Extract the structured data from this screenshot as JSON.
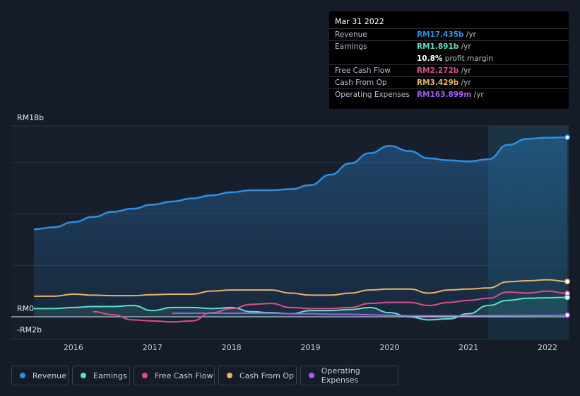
{
  "chart_data": {
    "type": "area",
    "yticks": [
      {
        "label": "RM18b",
        "value": 18
      },
      {
        "label": "RM0",
        "value": 0
      },
      {
        "label": "-RM2b",
        "value": -2
      }
    ],
    "ylim": [
      -2,
      18
    ],
    "xlim": [
      2015.5,
      2022.25
    ],
    "xticks": [
      "2016",
      "2017",
      "2018",
      "2019",
      "2020",
      "2021",
      "2022"
    ],
    "highlight_start": 2021.25,
    "series": [
      {
        "name": "Revenue",
        "color": "#2e8fe0",
        "fill": true,
        "x": [
          2015.5,
          2015.75,
          2016.0,
          2016.25,
          2016.5,
          2016.75,
          2017.0,
          2017.25,
          2017.5,
          2017.75,
          2018.0,
          2018.25,
          2018.5,
          2018.75,
          2019.0,
          2019.25,
          2019.5,
          2019.75,
          2020.0,
          2020.25,
          2020.5,
          2020.75,
          2021.0,
          2021.25,
          2021.5,
          2021.75,
          2022.0,
          2022.25
        ],
        "values": [
          8.5,
          8.7,
          9.2,
          9.7,
          10.2,
          10.5,
          10.9,
          11.2,
          11.5,
          11.8,
          12.1,
          12.3,
          12.3,
          12.4,
          12.8,
          13.8,
          14.9,
          15.9,
          16.6,
          16.1,
          15.4,
          15.2,
          15.1,
          15.3,
          16.7,
          17.3,
          17.4,
          17.435
        ]
      },
      {
        "name": "Earnings",
        "color": "#5ddfc9",
        "fill": true,
        "x": [
          2015.5,
          2015.75,
          2016.0,
          2016.25,
          2016.5,
          2016.75,
          2017.0,
          2017.25,
          2017.5,
          2017.75,
          2018.0,
          2018.25,
          2018.5,
          2018.75,
          2019.0,
          2019.25,
          2019.5,
          2019.75,
          2020.0,
          2020.25,
          2020.5,
          2020.75,
          2021.0,
          2021.25,
          2021.5,
          2021.75,
          2022.0,
          2022.25
        ],
        "values": [
          0.8,
          0.8,
          0.9,
          1.0,
          1.0,
          1.1,
          0.6,
          0.9,
          0.9,
          0.8,
          0.9,
          0.5,
          0.4,
          0.3,
          0.6,
          0.6,
          0.7,
          0.9,
          0.4,
          0.0,
          -0.3,
          -0.2,
          0.3,
          1.1,
          1.6,
          1.8,
          1.85,
          1.891
        ]
      },
      {
        "name": "Free Cash Flow",
        "color": "#d84f8b",
        "fill": false,
        "x": [
          2016.25,
          2016.5,
          2016.75,
          2017.0,
          2017.25,
          2017.5,
          2017.75,
          2018.0,
          2018.25,
          2018.5,
          2018.75,
          2019.0,
          2019.25,
          2019.5,
          2019.75,
          2020.0,
          2020.25,
          2020.5,
          2020.75,
          2021.0,
          2021.25,
          2021.5,
          2021.75,
          2022.0,
          2022.25
        ],
        "values": [
          0.5,
          0.2,
          -0.3,
          -0.4,
          -0.5,
          -0.4,
          0.4,
          0.8,
          1.2,
          1.3,
          0.9,
          0.8,
          0.8,
          0.9,
          1.3,
          1.4,
          1.4,
          1.1,
          1.4,
          1.6,
          1.8,
          2.4,
          2.3,
          2.5,
          2.272
        ]
      },
      {
        "name": "Cash From Op",
        "color": "#e8b26a",
        "fill": false,
        "x": [
          2015.5,
          2015.75,
          2016.0,
          2016.25,
          2016.5,
          2016.75,
          2017.0,
          2017.25,
          2017.5,
          2017.75,
          2018.0,
          2018.25,
          2018.5,
          2018.75,
          2019.0,
          2019.25,
          2019.5,
          2019.75,
          2020.0,
          2020.25,
          2020.5,
          2020.75,
          2021.0,
          2021.25,
          2021.5,
          2021.75,
          2022.0,
          2022.25
        ],
        "values": [
          2.0,
          2.0,
          2.2,
          2.1,
          2.05,
          2.05,
          2.15,
          2.2,
          2.2,
          2.5,
          2.6,
          2.6,
          2.6,
          2.3,
          2.1,
          2.1,
          2.3,
          2.6,
          2.7,
          2.7,
          2.3,
          2.6,
          2.7,
          2.8,
          3.4,
          3.5,
          3.6,
          3.429
        ]
      },
      {
        "name": "Operating Expenses",
        "color": "#a35cf0",
        "fill": false,
        "x": [
          2017.25,
          2017.5,
          2017.75,
          2018.0,
          2018.25,
          2018.5,
          2018.75,
          2019.0,
          2019.25,
          2019.5,
          2019.75,
          2020.0,
          2020.25,
          2020.5,
          2020.75,
          2021.0,
          2021.25,
          2021.5,
          2021.75,
          2022.0,
          2022.25
        ],
        "values": [
          0.35,
          0.35,
          0.35,
          0.35,
          0.35,
          0.35,
          0.3,
          0.3,
          0.25,
          0.25,
          0.2,
          0.15,
          0.1,
          0.1,
          0.1,
          0.1,
          0.12,
          0.12,
          0.13,
          0.15,
          0.164
        ]
      }
    ],
    "tooltip": {
      "date": "Mar 31 2022",
      "rows": [
        {
          "label": "Revenue",
          "value": "RM17.435b",
          "unit": " /yr",
          "color": "#2e8fe0"
        },
        {
          "label": "Earnings",
          "value": "RM1.891b",
          "unit": " /yr",
          "color": "#5ddfc9"
        },
        {
          "label": "",
          "value": "10.8%",
          "unit": " profit margin",
          "color": "#ffffff"
        },
        {
          "label": "Free Cash Flow",
          "value": "RM2.272b",
          "unit": " /yr",
          "color": "#d84f8b"
        },
        {
          "label": "Cash From Op",
          "value": "RM3.429b",
          "unit": " /yr",
          "color": "#e8b26a"
        },
        {
          "label": "Operating Expenses",
          "value": "RM163.899m",
          "unit": " /yr",
          "color": "#a35cf0"
        }
      ]
    },
    "legend": [
      {
        "label": "Revenue",
        "color": "#2e8fe0"
      },
      {
        "label": "Earnings",
        "color": "#5ddfc9"
      },
      {
        "label": "Free Cash Flow",
        "color": "#d84f8b"
      },
      {
        "label": "Cash From Op",
        "color": "#e8b26a"
      },
      {
        "label": "Operating Expenses",
        "color": "#a35cf0"
      }
    ]
  }
}
